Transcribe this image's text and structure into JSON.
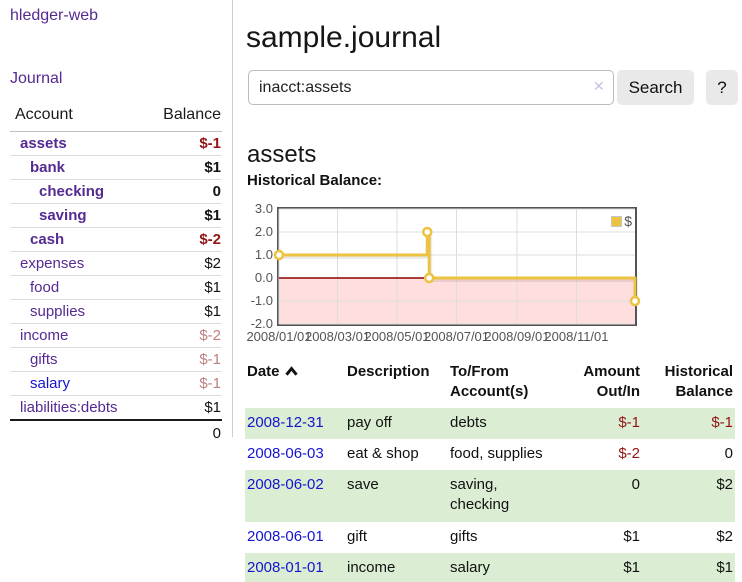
{
  "colors": {
    "link_purple": "#552a92",
    "link_blue": "#1515d0",
    "negative_red": "#941414",
    "faded_red": "#bf7f7f",
    "row_green": "#dbeed4",
    "chart_yellow": "#edc240",
    "chart_negative_bg": "#ffdede",
    "chart_zero_line": "#8b0000",
    "chart_border": "#545454",
    "chart_grid": "#dddddd"
  },
  "sidebar": {
    "app_title": "hledger-web",
    "journal_label": "Journal",
    "accounts_table": {
      "headers": {
        "account": "Account",
        "balance": "Balance"
      },
      "rows": [
        {
          "name": "assets",
          "balance": "$-1",
          "level": 1,
          "bold": true,
          "name_style": "purple",
          "balance_style": "neg"
        },
        {
          "name": "bank",
          "balance": "$1",
          "level": 2,
          "bold": true,
          "name_style": "purple",
          "balance_style": "plain"
        },
        {
          "name": "checking",
          "balance": "0",
          "level": 3,
          "bold": true,
          "name_style": "purple",
          "balance_style": "plain"
        },
        {
          "name": "saving",
          "balance": "$1",
          "level": 3,
          "bold": true,
          "name_style": "purple",
          "balance_style": "plain"
        },
        {
          "name": "cash",
          "balance": "$-2",
          "level": 2,
          "bold": true,
          "name_style": "purple",
          "balance_style": "neg"
        },
        {
          "name": "expenses",
          "balance": "$2",
          "level": 1,
          "bold": false,
          "name_style": "purple",
          "balance_style": "plain"
        },
        {
          "name": "food",
          "balance": "$1",
          "level": 2,
          "bold": false,
          "name_style": "purple",
          "balance_style": "plain"
        },
        {
          "name": "supplies",
          "balance": "$1",
          "level": 2,
          "bold": false,
          "name_style": "purple",
          "balance_style": "plain"
        },
        {
          "name": "income",
          "balance": "$-2",
          "level": 1,
          "bold": false,
          "name_style": "purple",
          "balance_style": "faded"
        },
        {
          "name": "gifts",
          "balance": "$-1",
          "level": 2,
          "bold": false,
          "name_style": "purple",
          "balance_style": "faded"
        },
        {
          "name": "salary",
          "balance": "$-1",
          "level": 2,
          "bold": false,
          "name_style": "blue",
          "balance_style": "faded"
        },
        {
          "name": "liabilities:debts",
          "balance": "$1",
          "level": 1,
          "bold": false,
          "name_style": "purple",
          "balance_style": "plain"
        }
      ],
      "total_balance": "0"
    }
  },
  "main": {
    "title": "sample.journal",
    "search": {
      "value": "inacct:assets",
      "clear_icon": "✕",
      "button_label": "Search",
      "help_label": "?"
    },
    "account_heading": "assets",
    "chart_label": "Historical Balance:",
    "register_table": {
      "headers": {
        "date": "Date",
        "description": "Description",
        "accounts": "To/From Account(s)",
        "amount": "Amount Out/In",
        "balance": "Historical Balance"
      },
      "rows": [
        {
          "date": "2008-12-31",
          "description": "pay off",
          "accounts": "debts",
          "amount": "$-1",
          "amount_negative": true,
          "balance": "$-1",
          "balance_negative": true,
          "shaded": true
        },
        {
          "date": "2008-06-03",
          "description": "eat & shop",
          "accounts": "food, supplies",
          "amount": "$-2",
          "amount_negative": true,
          "balance": "0",
          "balance_negative": false,
          "shaded": false
        },
        {
          "date": "2008-06-02",
          "description": "save",
          "accounts": "saving, checking",
          "amount": "0",
          "amount_negative": false,
          "balance": "$2",
          "balance_negative": false,
          "shaded": true
        },
        {
          "date": "2008-06-01",
          "description": "gift",
          "accounts": "gifts",
          "amount": "$1",
          "amount_negative": false,
          "balance": "$2",
          "balance_negative": false,
          "shaded": false
        },
        {
          "date": "2008-01-01",
          "description": "income",
          "accounts": "salary",
          "amount": "$1",
          "amount_negative": false,
          "balance": "$1",
          "balance_negative": false,
          "shaded": true
        }
      ]
    }
  },
  "chart_data": {
    "type": "line",
    "title": "Historical Balance",
    "step": true,
    "series": [
      {
        "name": "$",
        "color": "#edc240",
        "points": [
          [
            "2008-01-01",
            1
          ],
          [
            "2008-06-01",
            2
          ],
          [
            "2008-06-03",
            0
          ],
          [
            "2008-12-31",
            -1
          ]
        ]
      }
    ],
    "xlim": [
      "2008-01-01",
      "2008-12-31"
    ],
    "ylim": [
      -2,
      3
    ],
    "x_ticks": [
      {
        "date": "2008-01-01",
        "label": "2008/01/01"
      },
      {
        "date": "2008-03-01",
        "label": "2008/03/01"
      },
      {
        "date": "2008-05-01",
        "label": "2008/05/01"
      },
      {
        "date": "2008-07-01",
        "label": "2008/07/01"
      },
      {
        "date": "2008-09-01",
        "label": "2008/09/01"
      },
      {
        "date": "2008-11-01",
        "label": "2008/11/01"
      }
    ],
    "y_ticks": [
      {
        "value": 3,
        "label": "3.0"
      },
      {
        "value": 2,
        "label": "2.0"
      },
      {
        "value": 1,
        "label": "1.0"
      },
      {
        "value": 0,
        "label": "0.0"
      },
      {
        "value": -1,
        "label": "-1.0"
      },
      {
        "value": -2,
        "label": "-2.0"
      }
    ],
    "grid": true,
    "negative_region_fill": true,
    "legend_position": "top-right"
  }
}
